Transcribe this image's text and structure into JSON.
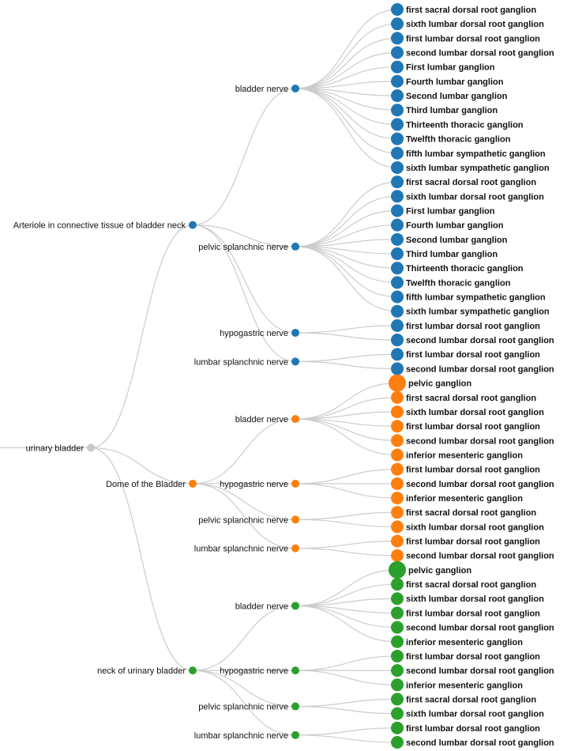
{
  "colors": {
    "root": "#c8c8c8",
    "link": "#cccccc",
    "branch": [
      "#1f77b4",
      "#ff7f0e",
      "#2ca02c"
    ]
  },
  "tree": {
    "name": "urinary bladder",
    "children": [
      {
        "name": "Arteriole in connective tissue of bladder neck",
        "children": [
          {
            "name": "bladder nerve",
            "children": [
              "first sacral dorsal root ganglion",
              "sixth lumbar dorsal root ganglion",
              "first lumbar dorsal root ganglion",
              "second lumbar dorsal root ganglion",
              "First lumbar ganglion",
              "Fourth lumbar ganglion",
              "Second lumbar ganglion",
              "Third lumbar ganglion",
              "Thirteenth thoracic ganglion",
              "Twelfth thoracic ganglion",
              "fifth lumbar sympathetic ganglion",
              "sixth lumbar sympathetic ganglion"
            ]
          },
          {
            "name": "pelvic splanchnic nerve",
            "children": [
              "first sacral dorsal root ganglion",
              "sixth lumbar dorsal root ganglion",
              "First lumbar ganglion",
              "Fourth lumbar ganglion",
              "Second lumbar ganglion",
              "Third lumbar ganglion",
              "Thirteenth thoracic ganglion",
              "Twelfth thoracic ganglion",
              "fifth lumbar sympathetic ganglion",
              "sixth lumbar sympathetic ganglion"
            ]
          },
          {
            "name": "hypogastric nerve",
            "children": [
              "first lumbar dorsal root ganglion",
              "second lumbar dorsal root ganglion"
            ]
          },
          {
            "name": "lumbar splanchnic nerve",
            "children": [
              "first lumbar dorsal root ganglion",
              "second lumbar dorsal root ganglion"
            ]
          }
        ]
      },
      {
        "name": "Dome of the Bladder",
        "children": [
          {
            "name": "bladder nerve",
            "children": [
              "pelvic ganglion",
              "first sacral dorsal root ganglion",
              "sixth lumbar dorsal root ganglion",
              "first lumbar dorsal root ganglion",
              "second lumbar dorsal root ganglion",
              "inferior mesenteric ganglion"
            ]
          },
          {
            "name": "hypogastric nerve",
            "children": [
              "first lumbar dorsal root ganglion",
              "second lumbar dorsal root ganglion",
              "inferior mesenteric ganglion"
            ]
          },
          {
            "name": "pelvic splanchnic nerve",
            "children": [
              "first sacral dorsal root ganglion",
              "sixth lumbar dorsal root ganglion"
            ]
          },
          {
            "name": "lumbar splanchnic nerve",
            "children": [
              "first lumbar dorsal root ganglion",
              "second lumbar dorsal root ganglion"
            ]
          }
        ]
      },
      {
        "name": "neck of urinary bladder",
        "children": [
          {
            "name": "bladder nerve",
            "children": [
              "pelvic ganglion",
              "first sacral dorsal root ganglion",
              "sixth lumbar dorsal root ganglion",
              "first lumbar dorsal root ganglion",
              "second lumbar dorsal root ganglion",
              "inferior mesenteric ganglion"
            ]
          },
          {
            "name": "hypogastric nerve",
            "children": [
              "first lumbar dorsal root ganglion",
              "second lumbar dorsal root ganglion",
              "inferior mesenteric ganglion"
            ]
          },
          {
            "name": "pelvic splanchnic nerve",
            "children": [
              "first sacral dorsal root ganglion",
              "sixth lumbar dorsal root ganglion"
            ]
          },
          {
            "name": "lumbar splanchnic nerve",
            "children": [
              "first lumbar dorsal root ganglion",
              "second lumbar dorsal root ganglion"
            ]
          }
        ]
      }
    ]
  }
}
